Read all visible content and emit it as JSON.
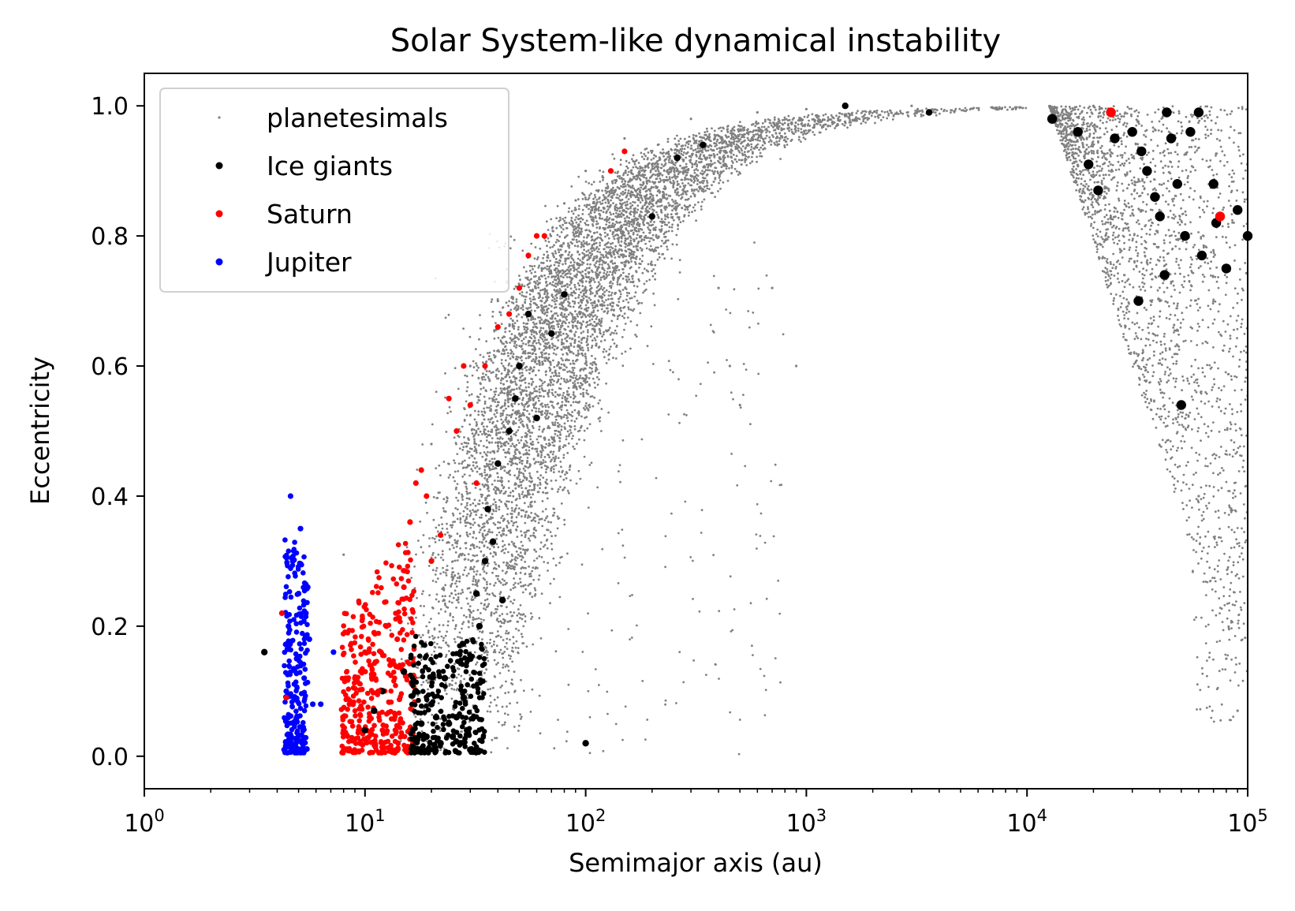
{
  "chart_data": {
    "type": "scatter",
    "title": "Solar System-like dynamical instability",
    "xlabel": "Semimajor axis (au)",
    "ylabel": "Eccentricity",
    "xscale": "log",
    "xlim": [
      1,
      100000
    ],
    "ylim": [
      -0.05,
      1.05
    ],
    "xticks": [
      {
        "value": 1,
        "base": "10",
        "exp": "0"
      },
      {
        "value": 10,
        "base": "10",
        "exp": "1"
      },
      {
        "value": 100,
        "base": "10",
        "exp": "2"
      },
      {
        "value": 1000,
        "base": "10",
        "exp": "3"
      },
      {
        "value": 10000,
        "base": "10",
        "exp": "4"
      },
      {
        "value": 100000,
        "base": "10",
        "exp": "5"
      }
    ],
    "yticks": [
      {
        "value": 0.0,
        "label": "0.0"
      },
      {
        "value": 0.2,
        "label": "0.2"
      },
      {
        "value": 0.4,
        "label": "0.4"
      },
      {
        "value": 0.6,
        "label": "0.6"
      },
      {
        "value": 0.8,
        "label": "0.8"
      },
      {
        "value": 1.0,
        "label": "1.0"
      }
    ],
    "legend_position": "top-left",
    "series": [
      {
        "name": "planetesimals",
        "color": "#808080",
        "marker_size": "tiny",
        "description": "cloud of scattered bodies along the high-eccentricity track from ~15 au (e~0) curving to e~1 near 1000 au; dense fan at 1e4-1e5 au with e 0.05-1.0",
        "points": [
          [
            8,
            0.31
          ],
          [
            20,
            0.48
          ],
          [
            30,
            0.6
          ],
          [
            40,
            0.7
          ],
          [
            50,
            0.55
          ],
          [
            60,
            0.8
          ],
          [
            80,
            0.85
          ],
          [
            100,
            0.9
          ],
          [
            150,
            0.95
          ],
          [
            300,
            0.98
          ],
          [
            600,
            0.99
          ],
          [
            1000,
            0.995
          ],
          [
            3000,
            1.0
          ],
          [
            20000,
            1.0
          ],
          [
            40000,
            0.7
          ],
          [
            60000,
            0.4
          ],
          [
            80000,
            0.15
          ],
          [
            90000,
            0.07
          ],
          [
            400,
            0.72
          ],
          [
            450,
            0.6
          ],
          [
            500,
            0.54
          ],
          [
            700,
            0.72
          ],
          [
            900,
            0.6
          ]
        ]
      },
      {
        "name": "Ice giants",
        "color": "#000000",
        "points": [
          [
            3.5,
            0.16
          ],
          [
            10,
            0.04
          ],
          [
            11,
            0.07
          ],
          [
            12,
            0.1
          ],
          [
            15,
            0.13
          ],
          [
            17,
            0.1
          ],
          [
            18,
            0.05
          ],
          [
            19,
            0.03
          ],
          [
            20,
            0.08
          ],
          [
            21,
            0.06
          ],
          [
            22,
            0.02
          ],
          [
            23,
            0.12
          ],
          [
            24,
            0.05
          ],
          [
            25,
            0.03
          ],
          [
            26,
            0.06
          ],
          [
            27,
            0.02
          ],
          [
            28,
            0.09
          ],
          [
            29,
            0.04
          ],
          [
            30,
            0.01
          ],
          [
            30,
            0.15
          ],
          [
            32,
            0.25
          ],
          [
            33,
            0.2
          ],
          [
            35,
            0.3
          ],
          [
            36,
            0.38
          ],
          [
            38,
            0.33
          ],
          [
            40,
            0.45
          ],
          [
            42,
            0.24
          ],
          [
            45,
            0.5
          ],
          [
            48,
            0.55
          ],
          [
            50,
            0.6
          ],
          [
            55,
            0.68
          ],
          [
            60,
            0.52
          ],
          [
            70,
            0.65
          ],
          [
            80,
            0.71
          ],
          [
            100,
            0.02
          ],
          [
            200,
            0.83
          ],
          [
            260,
            0.92
          ],
          [
            340,
            0.94
          ],
          [
            1500,
            1.0
          ],
          [
            3600,
            0.99
          ],
          [
            13000,
            0.98
          ],
          [
            17000,
            0.96
          ],
          [
            19000,
            0.91
          ],
          [
            21000,
            0.87
          ],
          [
            25000,
            0.95
          ],
          [
            30000,
            0.96
          ],
          [
            33000,
            0.93
          ],
          [
            35000,
            0.9
          ],
          [
            38000,
            0.86
          ],
          [
            40000,
            0.83
          ],
          [
            43000,
            0.99
          ],
          [
            45000,
            0.95
          ],
          [
            48000,
            0.88
          ],
          [
            52000,
            0.8
          ],
          [
            55000,
            0.96
          ],
          [
            60000,
            0.99
          ],
          [
            62000,
            0.77
          ],
          [
            70000,
            0.88
          ],
          [
            72000,
            0.82
          ],
          [
            80000,
            0.75
          ],
          [
            90000,
            0.84
          ],
          [
            100000,
            0.8
          ],
          [
            32000,
            0.7
          ],
          [
            42000,
            0.74
          ],
          [
            50000,
            0.54
          ]
        ]
      },
      {
        "name": "Saturn",
        "color": "#ff0000",
        "points": [
          [
            4.2,
            0.22
          ],
          [
            4.4,
            0.09
          ],
          [
            8,
            0.04
          ],
          [
            8.5,
            0.08
          ],
          [
            9,
            0.12
          ],
          [
            9.5,
            0.02
          ],
          [
            10,
            0.16
          ],
          [
            10.5,
            0.06
          ],
          [
            11,
            0.19
          ],
          [
            11.5,
            0.1
          ],
          [
            12,
            0.04
          ],
          [
            12.5,
            0.2
          ],
          [
            13,
            0.14
          ],
          [
            14,
            0.18
          ],
          [
            15,
            0.26
          ],
          [
            16,
            0.36
          ],
          [
            17,
            0.42
          ],
          [
            18,
            0.44
          ],
          [
            19,
            0.4
          ],
          [
            20,
            0.3
          ],
          [
            22,
            0.34
          ],
          [
            24,
            0.55
          ],
          [
            26,
            0.5
          ],
          [
            28,
            0.6
          ],
          [
            30,
            0.54
          ],
          [
            32,
            0.42
          ],
          [
            35,
            0.6
          ],
          [
            40,
            0.66
          ],
          [
            45,
            0.68
          ],
          [
            50,
            0.72
          ],
          [
            55,
            0.77
          ],
          [
            60,
            0.8
          ],
          [
            65,
            0.8
          ],
          [
            130,
            0.9
          ],
          [
            150,
            0.93
          ],
          [
            24000,
            0.99
          ],
          [
            75000,
            0.83
          ]
        ]
      },
      {
        "name": "Jupiter",
        "color": "#0000ff",
        "points": [
          [
            4.3,
            0.01
          ],
          [
            4.4,
            0.1
          ],
          [
            4.5,
            0.2
          ],
          [
            4.6,
            0.4
          ],
          [
            4.7,
            0.3
          ],
          [
            4.8,
            0.05
          ],
          [
            4.9,
            0.15
          ],
          [
            5.0,
            0.25
          ],
          [
            5.1,
            0.35
          ],
          [
            5.2,
            0.02
          ],
          [
            5.3,
            0.12
          ],
          [
            5.4,
            0.22
          ],
          [
            5.5,
            0.26
          ],
          [
            5.6,
            0.18
          ],
          [
            5.8,
            0.08
          ],
          [
            6.3,
            0.08
          ],
          [
            7.2,
            0.16
          ]
        ]
      }
    ]
  }
}
